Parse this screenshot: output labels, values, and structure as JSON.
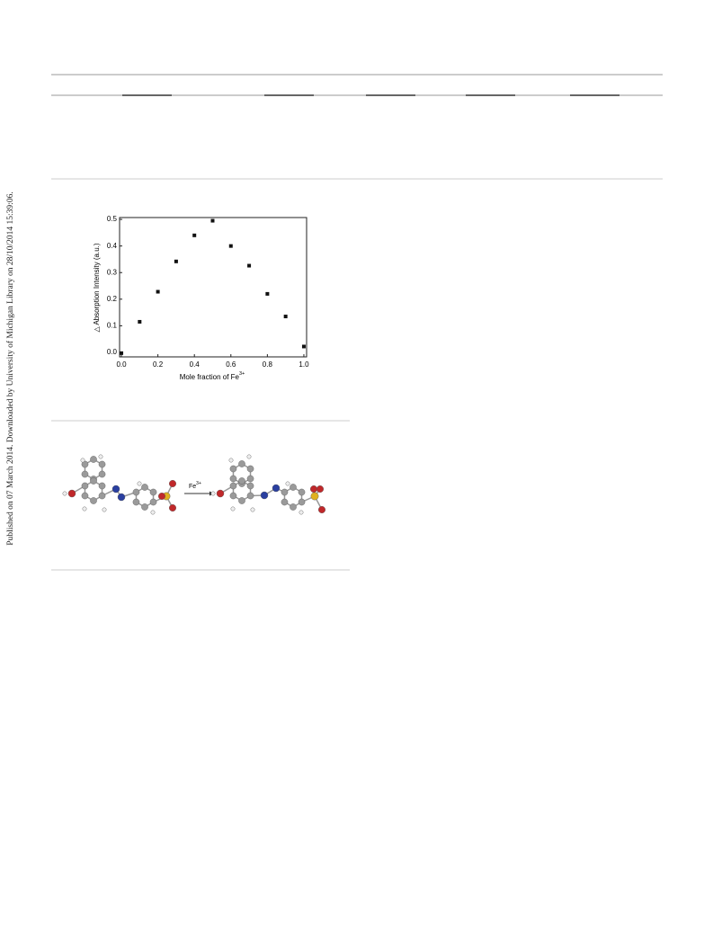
{
  "side_note": "Published on 07 March 2014. Downloaded by University of Michigan Library on 28/10/2014 15:39:06.",
  "chart_data": {
    "type": "scatter",
    "xlabel": "Mole fraction of Fe",
    "xlabel_sup": "3+",
    "ylabel": "△ Absorption Intensity (a.u.)",
    "x": [
      0.0,
      0.1,
      0.2,
      0.3,
      0.4,
      0.5,
      0.6,
      0.7,
      0.8,
      0.9,
      1.0
    ],
    "values": [
      -0.003,
      0.115,
      0.228,
      0.342,
      0.44,
      0.495,
      0.4,
      0.326,
      0.22,
      0.135,
      0.022
    ],
    "color": "#111111",
    "xlim": [
      -0.01,
      1.015
    ],
    "ylim": [
      -0.017,
      0.507
    ],
    "xticks": [
      {
        "value": 0,
        "label": "0.0"
      },
      0.2,
      0.4,
      0.6,
      0.8,
      {
        "value": 1,
        "label": "1.0"
      }
    ],
    "yticks": [
      {
        "value": 0,
        "label": "0.0"
      },
      0.1,
      0.2,
      0.3,
      0.4,
      0.5
    ]
  },
  "reaction": {
    "reagent": "Fe",
    "charge": "3+"
  }
}
